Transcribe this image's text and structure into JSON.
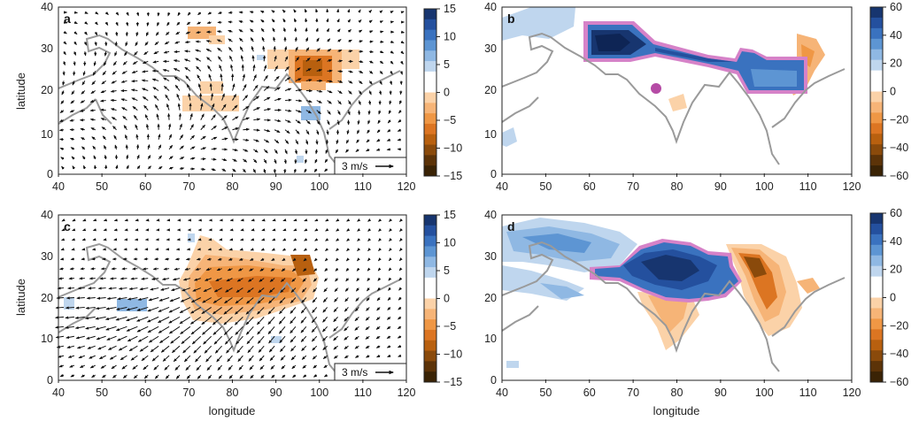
{
  "axes": {
    "xlabel": "longitude",
    "ylabel": "latitude",
    "x_ticks": [
      "40",
      "50",
      "60",
      "70",
      "80",
      "90",
      "100",
      "110",
      "120"
    ],
    "y_ticks": [
      "0",
      "10",
      "20",
      "30",
      "40"
    ]
  },
  "panels": [
    {
      "letter": "a",
      "scale_label": "3 m/s"
    },
    {
      "letter": "b"
    },
    {
      "letter": "c",
      "scale_label": "3 m/s"
    },
    {
      "letter": "d"
    }
  ],
  "colorbars": {
    "wind": {
      "ticks": [
        "15",
        "10",
        "5",
        "0",
        "−5",
        "−10",
        "−15"
      ]
    },
    "precip": {
      "ticks": [
        "60",
        "40",
        "20",
        "0",
        "−20",
        "−40",
        "−60"
      ]
    }
  },
  "colors": {
    "coast": "#9a9a9a",
    "mask_outline": "#c050b0",
    "scale": [
      "#3a2305",
      "#5c3308",
      "#8a4a0b",
      "#b8600f",
      "#dc7522",
      "#ef9745",
      "#f6b477",
      "#fbd2a8",
      "#ffffff",
      "#ffffff",
      "#bfd6ee",
      "#8fb8e3",
      "#5d95d3",
      "#3a72bf",
      "#24509e",
      "#17356f"
    ]
  }
}
